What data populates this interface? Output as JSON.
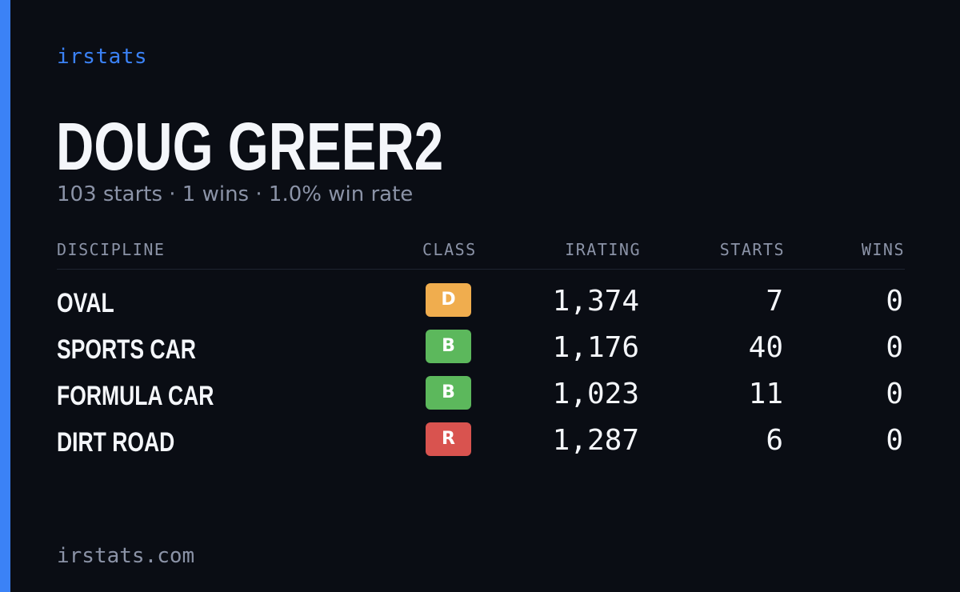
{
  "brand": "irstats",
  "driver": {
    "name": "DOUG GREER2",
    "summary": "103 starts · 1 wins · 1.0% win rate"
  },
  "table": {
    "headers": {
      "discipline": "DISCIPLINE",
      "class": "CLASS",
      "irating": "IRATING",
      "starts": "STARTS",
      "wins": "WINS"
    },
    "rows": [
      {
        "discipline": "OVAL",
        "class": "D",
        "class_color": "#f0ad4e",
        "irating": "1,374",
        "starts": "7",
        "wins": "0"
      },
      {
        "discipline": "SPORTS CAR",
        "class": "B",
        "class_color": "#5cb85c",
        "irating": "1,176",
        "starts": "40",
        "wins": "0"
      },
      {
        "discipline": "FORMULA CAR",
        "class": "B",
        "class_color": "#5cb85c",
        "irating": "1,023",
        "starts": "11",
        "wins": "0"
      },
      {
        "discipline": "DIRT ROAD",
        "class": "R",
        "class_color": "#d9534f",
        "irating": "1,287",
        "starts": "6",
        "wins": "0"
      }
    ]
  },
  "footer": "irstats.com",
  "colors": {
    "background": "#0a0d14",
    "accent": "#3b82f6",
    "text": "#f4f6fa",
    "muted": "#8b93a7"
  }
}
